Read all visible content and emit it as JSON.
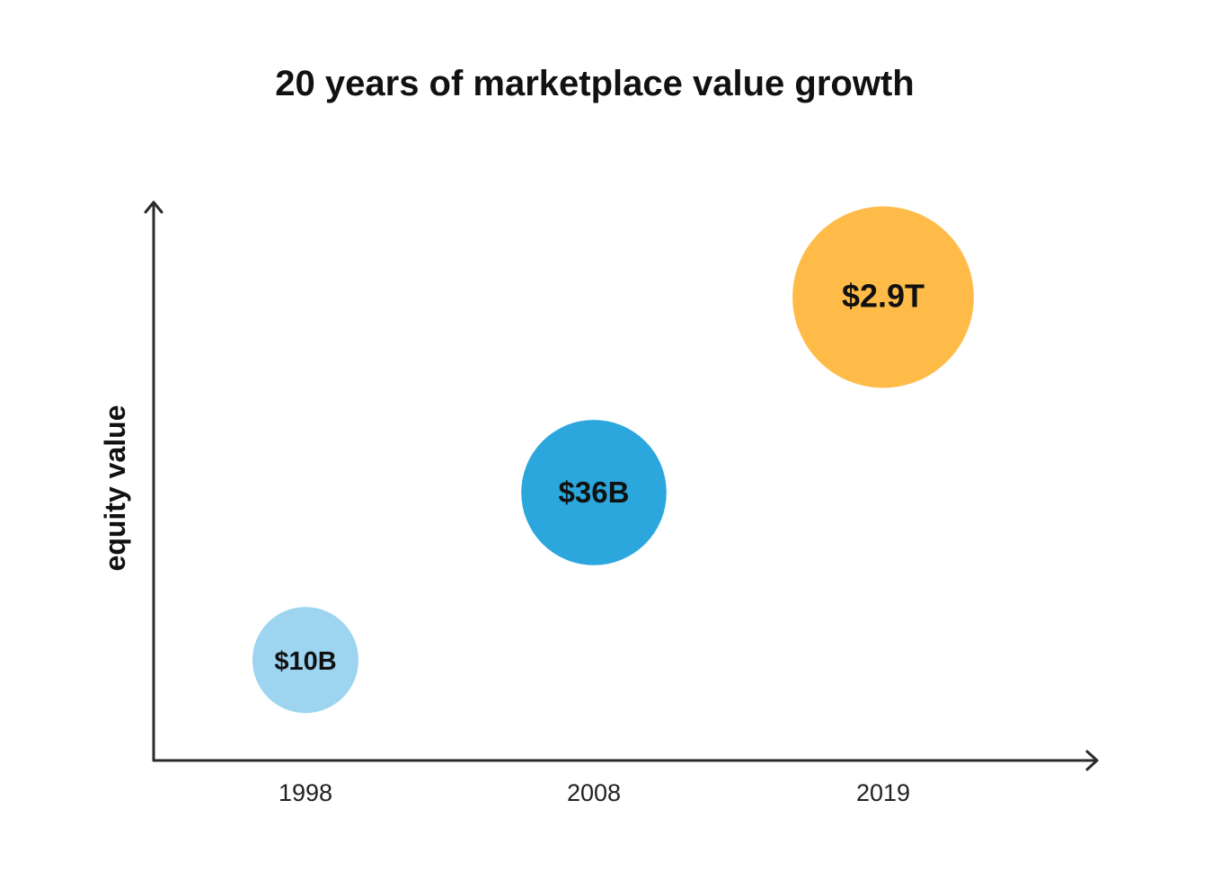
{
  "chart_data": {
    "type": "scatter",
    "subtype": "bubble",
    "title": "20 years of marketplace value growth",
    "xlabel": "",
    "ylabel": "equity value",
    "categories": [
      "1998",
      "2008",
      "2019"
    ],
    "points": [
      {
        "x": "1998",
        "label": "$10B",
        "value_usd_billions": 10,
        "color": "#9dd4f0",
        "relative_size": 1.0,
        "relative_height": 0.18
      },
      {
        "x": "2008",
        "label": "$36B",
        "value_usd_billions": 36,
        "color": "#2ba7de",
        "relative_size": 1.37,
        "relative_height": 0.48
      },
      {
        "x": "2019",
        "label": "$2.9T",
        "value_usd_billions": 2900,
        "color": "#ffbb48",
        "relative_size": 1.71,
        "relative_height": 0.83
      }
    ],
    "grid": false,
    "legend": "none",
    "axis_arrows": true
  }
}
